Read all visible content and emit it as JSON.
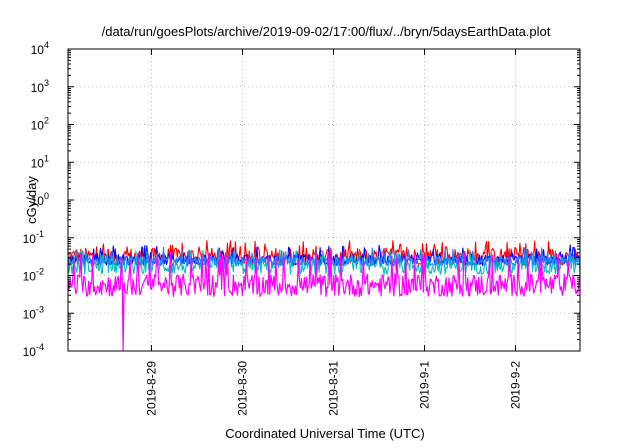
{
  "chart_data": {
    "type": "line",
    "title": "/data/run/goesPlots/archive/2019-09-02/17:00/flux/../bryn/5daysEarthData.plot",
    "xlabel": "Coordinated Universal Time (UTC)",
    "ylabel": "cGy/day",
    "y_scale": "log",
    "ylim": [
      0.0001,
      10000
    ],
    "y_ticks": [
      {
        "value": 10000,
        "base": "10",
        "exp": "4"
      },
      {
        "value": 1000,
        "base": "10",
        "exp": "3"
      },
      {
        "value": 100,
        "base": "10",
        "exp": "2"
      },
      {
        "value": 10,
        "base": "10",
        "exp": "1"
      },
      {
        "value": 1,
        "base": "10",
        "exp": "0"
      },
      {
        "value": 0.1,
        "base": "10",
        "exp": "-1"
      },
      {
        "value": 0.01,
        "base": "10",
        "exp": "-2"
      },
      {
        "value": 0.001,
        "base": "10",
        "exp": "-3"
      },
      {
        "value": 0.0001,
        "base": "10",
        "exp": "-4"
      }
    ],
    "xlim": [
      "2019-08-28 02:00",
      "2019-09-02 17:00"
    ],
    "x_ticks": [
      {
        "value": "2019-08-29 00:00",
        "label": "2019-8-29"
      },
      {
        "value": "2019-08-30 00:00",
        "label": "2019-8-30"
      },
      {
        "value": "2019-08-31 00:00",
        "label": "2019-8-31"
      },
      {
        "value": "2019-09-01 00:00",
        "label": "2019-9-1"
      },
      {
        "value": "2019-09-02 00:00",
        "label": "2019-9-2"
      }
    ],
    "grid": true,
    "series": [
      {
        "color": "#ff0000",
        "base": 0.032,
        "spread": 0.45,
        "spike": 0.06
      },
      {
        "color": "#0000ff",
        "base": 0.026,
        "spread": 0.3,
        "spike": 0.045
      },
      {
        "color": "#00bfbf",
        "base": 0.018,
        "spread": 0.45,
        "spike": 0.035
      },
      {
        "color": "#2080ff",
        "base": 0.024,
        "spread": 0.25,
        "spike": 0.04
      },
      {
        "color": "#ff00ff",
        "base": 0.0055,
        "spread": 0.6,
        "spike": 0.03,
        "dip": {
          "x": "2019-08-28 16:30",
          "value": 0.0001
        }
      }
    ]
  }
}
